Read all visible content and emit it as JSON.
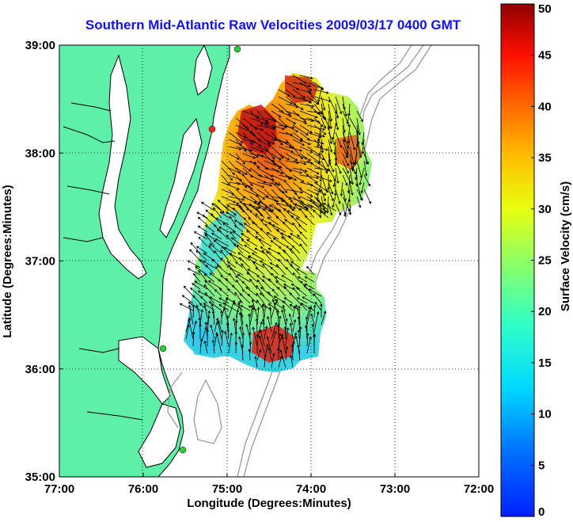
{
  "title": "Southern Mid-Atlantic Raw Velocities 2009/03/17 0400 GMT",
  "x_axis": {
    "label": "Longitude (Degrees:Minutes)",
    "ticks": [
      "77:00",
      "76:00",
      "75:00",
      "74:00",
      "73:00",
      "72:00"
    ],
    "range_deg_west": [
      77,
      72
    ]
  },
  "y_axis": {
    "label": "Latitude (Degrees:Minutes)",
    "ticks": [
      "35:00",
      "36:00",
      "37:00",
      "38:00",
      "39:00"
    ],
    "range_deg_north": [
      35,
      39
    ]
  },
  "colorbar": {
    "label": "Surface Velocity (cm/s)",
    "ticks": [
      "0",
      "5",
      "10",
      "15",
      "20",
      "25",
      "30",
      "35",
      "40",
      "45",
      "50"
    ],
    "range": [
      0,
      50
    ],
    "colormap": "jet"
  },
  "colors": {
    "title": "#1212ee",
    "land": "#5ef0a8",
    "coastline": "#000000",
    "bathymetry": "#999999",
    "grid": "#000000",
    "station": "#2ecc40",
    "station_highlight": "#ff2222"
  },
  "stations": [
    {
      "lon": 74.9,
      "lat": 38.98,
      "color": "green"
    },
    {
      "lon": 75.05,
      "lat": 38.22,
      "color": "red"
    },
    {
      "lon": 75.35,
      "lat": 36.18,
      "color": "green"
    },
    {
      "lon": 75.55,
      "lat": 35.28,
      "color": "green"
    }
  ]
}
